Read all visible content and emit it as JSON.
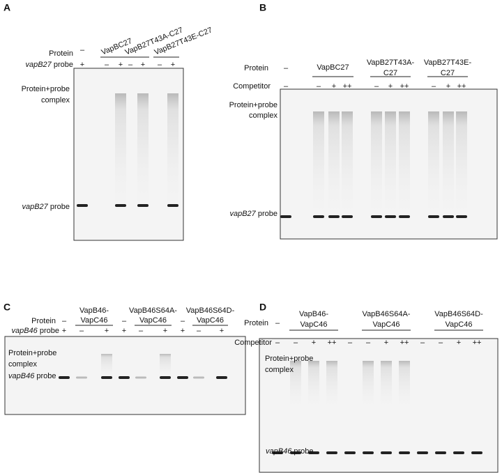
{
  "panels": [
    {
      "letter": "A",
      "protein_label": "Protein",
      "protein_none": [
        "–"
      ],
      "groups": [
        [
          "VapBC27"
        ],
        [
          "VapB27T43A-C27"
        ],
        [
          "VapB27T43E-C27"
        ]
      ],
      "row2_label": {
        "gene": "vapB27",
        "word": "probe"
      },
      "row2": [
        "+",
        "–",
        "+",
        "–",
        "+",
        "–",
        "+"
      ],
      "complex_label": [
        "Protein+probe",
        "complex"
      ],
      "probe_label": {
        "gene": "vapB27",
        "word": "probe"
      }
    },
    {
      "letter": "B",
      "protein_label": "Protein",
      "protein_none": [
        "–"
      ],
      "groups": [
        [
          "VapBC27"
        ],
        [
          "VapB27T43A-",
          "C27"
        ],
        [
          "VapB27T43E-",
          "C27"
        ]
      ],
      "row2_label": {
        "text": "Competitor"
      },
      "row2": [
        "–",
        "–",
        "+",
        "++",
        "–",
        "+",
        "++",
        "–",
        "+",
        "++"
      ],
      "complex_label": [
        "Protein+probe",
        "complex"
      ],
      "probe_label": {
        "gene": "vapB27",
        "word": "probe"
      }
    },
    {
      "letter": "C",
      "protein_label": "Protein",
      "protein_none": [
        "–",
        "–",
        "–"
      ],
      "groups": [
        [
          "VapB46-",
          "VapC46"
        ],
        [
          "VapB46S64A-",
          "VapC46"
        ],
        [
          "VapB46S64D-",
          "VapC46"
        ]
      ],
      "row2_label": {
        "gene": "vapB46",
        "word": "probe"
      },
      "row2": [
        "+",
        "–",
        "+",
        "+",
        "–",
        "+",
        "+",
        "–",
        "+"
      ],
      "complex_label": [
        "Protein+probe",
        "complex"
      ],
      "probe_label": {
        "gene": "vapB46",
        "word": "probe"
      }
    },
    {
      "letter": "D",
      "protein_label": "Protein",
      "protein_none": [
        "–"
      ],
      "groups": [
        [
          "VapB46-",
          "VapC46"
        ],
        [
          "VapB46S64A-",
          "VapC46"
        ],
        [
          "VapB46S64D-",
          "VapC46"
        ]
      ],
      "row2_label": {
        "text": "Competitor"
      },
      "row2": [
        "–",
        "–",
        "+",
        "++",
        "–",
        "–",
        "+",
        "++",
        "–",
        "–",
        "+",
        "++"
      ],
      "complex_label": [
        "Protein+probe",
        "complex"
      ],
      "probe_label": {
        "gene": "vapB46",
        "word": "probe"
      }
    }
  ]
}
